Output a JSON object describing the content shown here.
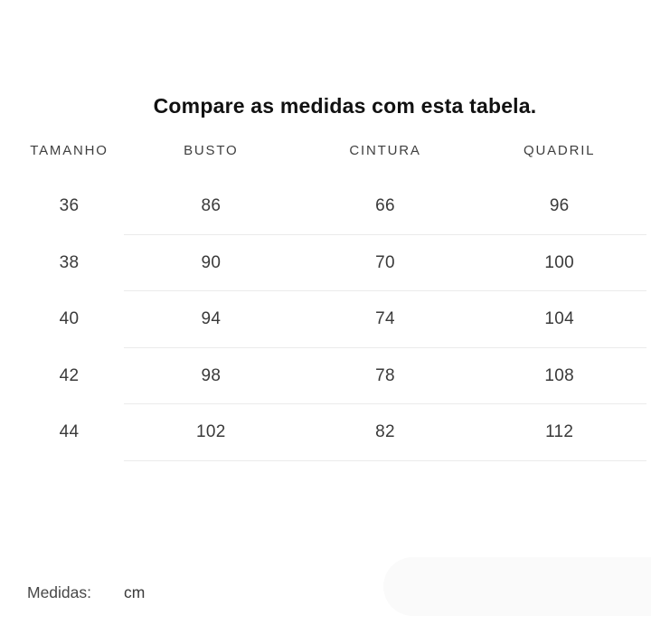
{
  "page": {
    "title": "Compare as medidas com esta tabela."
  },
  "table": {
    "headers": [
      "TAMANHO",
      "BUSTO",
      "CINTURA",
      "QUADRIL"
    ],
    "rows": [
      [
        "36",
        "86",
        "66",
        "96"
      ],
      [
        "38",
        "90",
        "70",
        "100"
      ],
      [
        "40",
        "94",
        "74",
        "104"
      ],
      [
        "42",
        "98",
        "78",
        "108"
      ],
      [
        "44",
        "102",
        "82",
        "112"
      ]
    ]
  },
  "footer": {
    "label": "Medidas:",
    "unit": "cm"
  },
  "colors": {
    "background": "#ffffff",
    "title_text": "#111111",
    "header_text": "#3f3f3f",
    "cell_text": "#3a3a3a",
    "divider": "#ebebeb",
    "pill": "#fafafa"
  }
}
